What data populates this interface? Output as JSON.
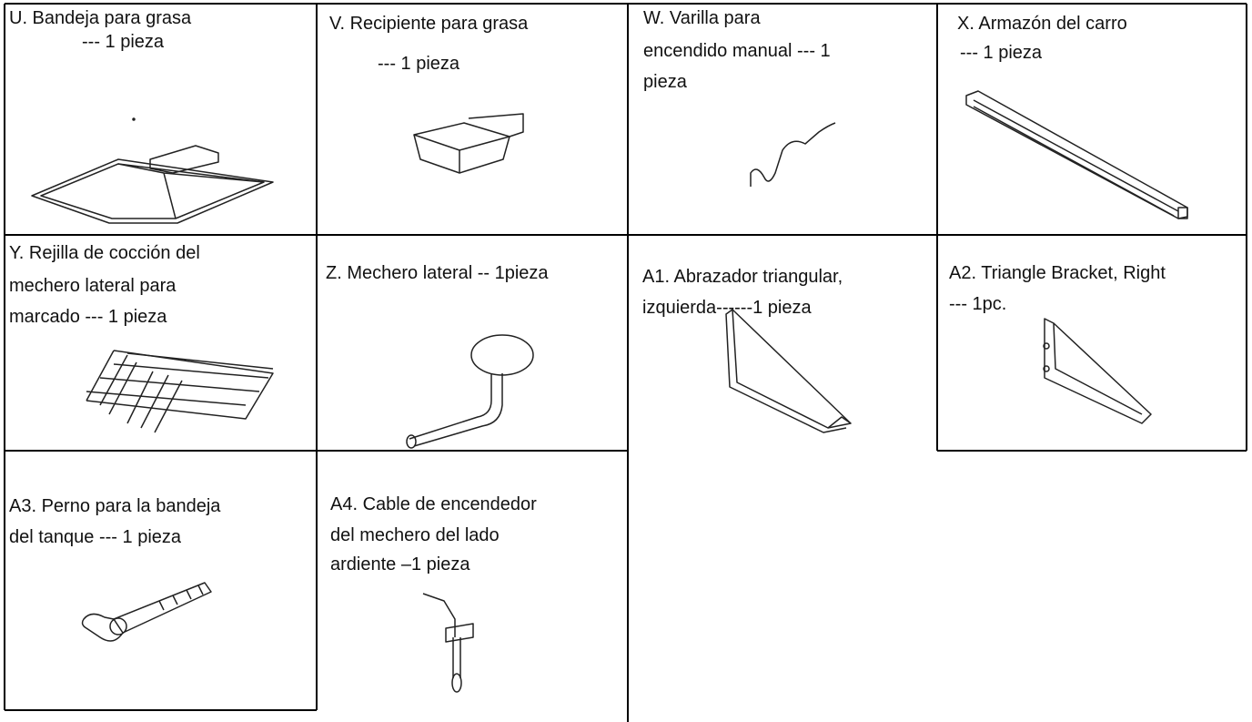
{
  "parts": [
    {
      "lines": [
        "U. Bandeja para grasa",
        "--- 1 pieza"
      ]
    },
    {
      "lines": [
        "V. Recipiente para grasa",
        "--- 1 pieza"
      ]
    },
    {
      "lines": [
        "W. Varilla para",
        "encendido manual --- 1",
        "pieza"
      ]
    },
    {
      "lines": [
        "X. Armazón del carro",
        "--- 1 pieza"
      ]
    },
    {
      "lines": [
        "Y. Rejilla de cocción del",
        "mechero lateral para",
        "marcado --- 1 pieza"
      ]
    },
    {
      "lines": [
        "Z. Mechero lateral -- 1pieza"
      ]
    },
    {
      "lines": [
        "A1. Abrazador triangular,",
        "izquierda------1 pieza"
      ]
    },
    {
      "lines": [
        "A2. Triangle Bracket, Right",
        "--- 1pc."
      ]
    },
    {
      "lines": [
        "A3. Perno para la bandeja",
        "del tanque --- 1 pieza"
      ]
    },
    {
      "lines": [
        "A4. Cable de encendedor",
        "del mechero del lado",
        "ardiente –1 pieza"
      ]
    }
  ]
}
